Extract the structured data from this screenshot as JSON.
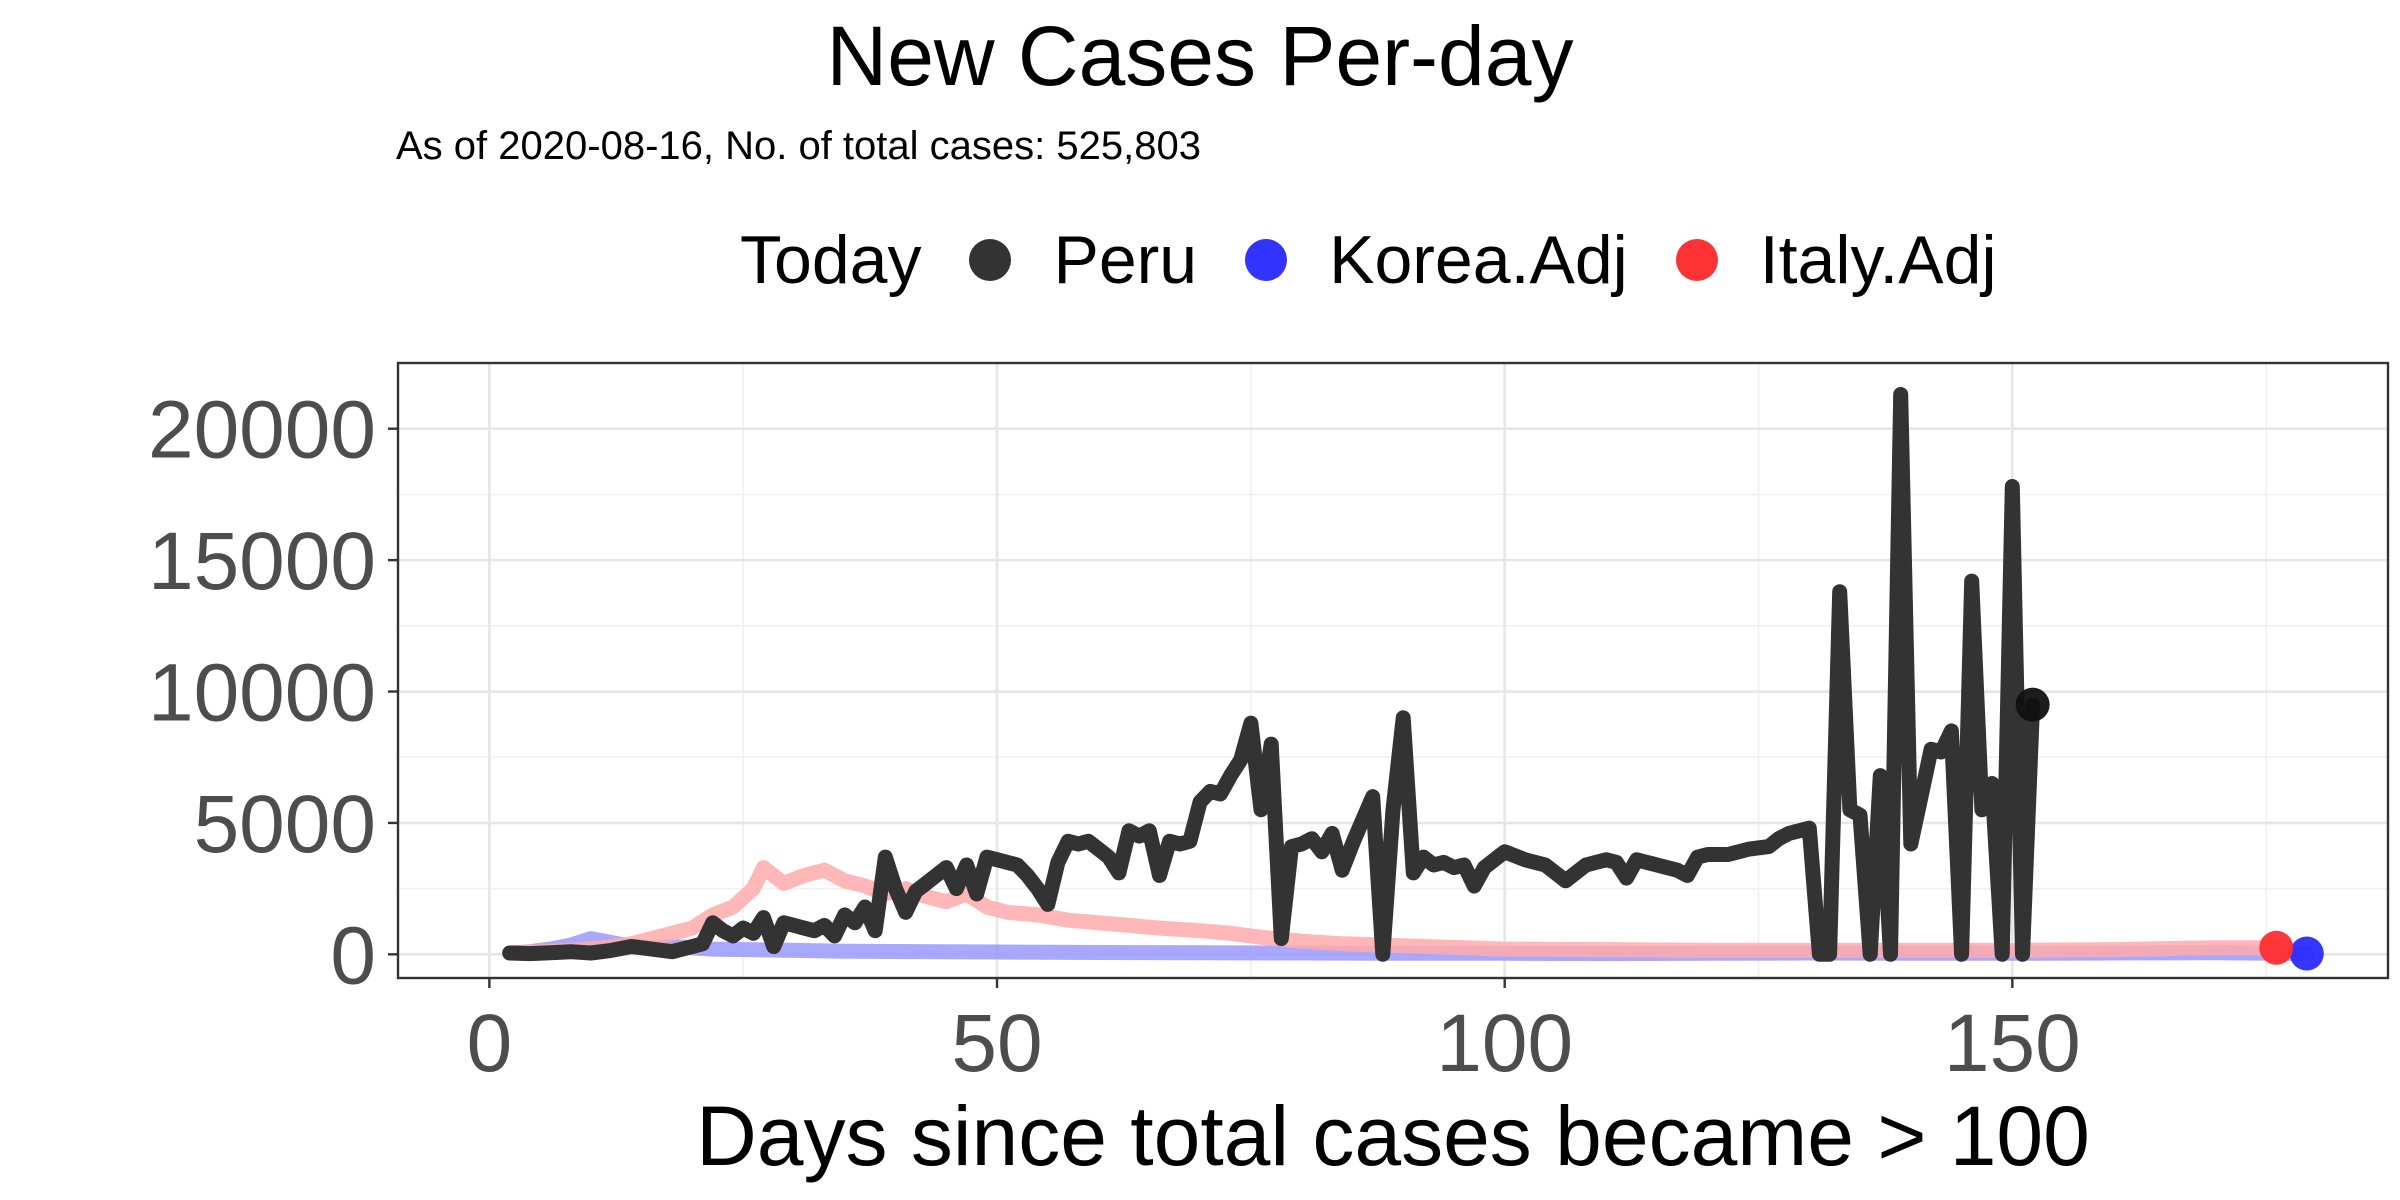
{
  "chart_data": {
    "type": "line",
    "title": "New Cases Per-day",
    "subtitle": "As of 2020-08-16, No. of total cases: 525,803",
    "xlabel": "Days since total cases became > 100",
    "ylabel": "",
    "xlim": [
      -9,
      187
    ],
    "ylim": [
      -900,
      22500
    ],
    "x_ticks": [
      0,
      50,
      100,
      150
    ],
    "y_ticks": [
      0,
      5000,
      10000,
      15000,
      20000
    ],
    "grid": true,
    "legend": {
      "title": "Today",
      "position": "top",
      "entries": [
        {
          "label": "Peru",
          "color": "#333333"
        },
        {
          "label": "Korea.Adj",
          "color": "#3333ff"
        },
        {
          "label": "Italy.Adj",
          "color": "#ff3333"
        }
      ]
    },
    "series": [
      {
        "name": "Korea.Adj",
        "color": "#9999ff",
        "today_color": "#2b2bff",
        "today": [
          179,
          30
        ],
        "points": [
          [
            2,
            50
          ],
          [
            4,
            100
          ],
          [
            6,
            200
          ],
          [
            8,
            350
          ],
          [
            10,
            600
          ],
          [
            12,
            450
          ],
          [
            14,
            300
          ],
          [
            16,
            250
          ],
          [
            18,
            300
          ],
          [
            20,
            250
          ],
          [
            22,
            200
          ],
          [
            25,
            180
          ],
          [
            30,
            150
          ],
          [
            35,
            120
          ],
          [
            40,
            110
          ],
          [
            45,
            100
          ],
          [
            50,
            90
          ],
          [
            60,
            70
          ],
          [
            70,
            60
          ],
          [
            80,
            50
          ],
          [
            90,
            40
          ],
          [
            100,
            40
          ],
          [
            110,
            30
          ],
          [
            120,
            40
          ],
          [
            130,
            50
          ],
          [
            140,
            40
          ],
          [
            150,
            40
          ],
          [
            160,
            50
          ],
          [
            170,
            60
          ],
          [
            179,
            30
          ]
        ]
      },
      {
        "name": "Italy.Adj",
        "color": "#ffaaaa",
        "today_color": "#ff2e2e",
        "today": [
          176,
          250
        ],
        "points": [
          [
            2,
            50
          ],
          [
            5,
            100
          ],
          [
            8,
            150
          ],
          [
            11,
            250
          ],
          [
            14,
            400
          ],
          [
            17,
            700
          ],
          [
            20,
            1000
          ],
          [
            22,
            1500
          ],
          [
            24,
            1800
          ],
          [
            26,
            2500
          ],
          [
            27,
            3300
          ],
          [
            29,
            2700
          ],
          [
            31,
            3000
          ],
          [
            33,
            3200
          ],
          [
            35,
            2800
          ],
          [
            37,
            2600
          ],
          [
            39,
            2300
          ],
          [
            41,
            2500
          ],
          [
            43,
            2200
          ],
          [
            45,
            2000
          ],
          [
            47,
            2300
          ],
          [
            49,
            1800
          ],
          [
            51,
            1600
          ],
          [
            54,
            1500
          ],
          [
            57,
            1300
          ],
          [
            60,
            1200
          ],
          [
            63,
            1100
          ],
          [
            66,
            1000
          ],
          [
            70,
            900
          ],
          [
            73,
            800
          ],
          [
            76,
            650
          ],
          [
            80,
            500
          ],
          [
            84,
            400
          ],
          [
            88,
            350
          ],
          [
            92,
            300
          ],
          [
            96,
            250
          ],
          [
            100,
            200
          ],
          [
            110,
            180
          ],
          [
            120,
            150
          ],
          [
            130,
            150
          ],
          [
            140,
            150
          ],
          [
            150,
            150
          ],
          [
            160,
            180
          ],
          [
            170,
            250
          ],
          [
            176,
            250
          ]
        ]
      },
      {
        "name": "Peru",
        "color": "#333333",
        "today_color": "#111111",
        "today": [
          152,
          9500
        ],
        "points": [
          [
            2,
            50
          ],
          [
            4,
            30
          ],
          [
            6,
            60
          ],
          [
            8,
            100
          ],
          [
            10,
            50
          ],
          [
            12,
            150
          ],
          [
            14,
            300
          ],
          [
            16,
            200
          ],
          [
            18,
            100
          ],
          [
            20,
            300
          ],
          [
            21,
            400
          ],
          [
            22,
            1200
          ],
          [
            23,
            900
          ],
          [
            24,
            700
          ],
          [
            25,
            1000
          ],
          [
            26,
            800
          ],
          [
            27,
            1400
          ],
          [
            28,
            300
          ],
          [
            29,
            1200
          ],
          [
            30,
            1100
          ],
          [
            31,
            1000
          ],
          [
            32,
            900
          ],
          [
            33,
            1100
          ],
          [
            34,
            700
          ],
          [
            35,
            1500
          ],
          [
            36,
            1200
          ],
          [
            37,
            1800
          ],
          [
            38,
            900
          ],
          [
            39,
            3700
          ],
          [
            40,
            2500
          ],
          [
            41,
            1600
          ],
          [
            42,
            2400
          ],
          [
            43,
            2700
          ],
          [
            44,
            3000
          ],
          [
            45,
            3300
          ],
          [
            46,
            2500
          ],
          [
            47,
            3400
          ],
          [
            48,
            2300
          ],
          [
            49,
            3700
          ],
          [
            50,
            3600
          ],
          [
            51,
            3500
          ],
          [
            52,
            3400
          ],
          [
            53,
            3000
          ],
          [
            54,
            2500
          ],
          [
            55,
            1900
          ],
          [
            56,
            3500
          ],
          [
            57,
            4300
          ],
          [
            58,
            4200
          ],
          [
            59,
            4300
          ],
          [
            60,
            4000
          ],
          [
            61,
            3700
          ],
          [
            62,
            3100
          ],
          [
            63,
            4700
          ],
          [
            64,
            4500
          ],
          [
            65,
            4700
          ],
          [
            66,
            3000
          ],
          [
            67,
            4300
          ],
          [
            68,
            4200
          ],
          [
            69,
            4300
          ],
          [
            70,
            5800
          ],
          [
            71,
            6200
          ],
          [
            72,
            6100
          ],
          [
            73,
            6800
          ],
          [
            74,
            7400
          ],
          [
            75,
            8800
          ],
          [
            76,
            5500
          ],
          [
            77,
            8000
          ],
          [
            78,
            600
          ],
          [
            79,
            4100
          ],
          [
            80,
            4200
          ],
          [
            81,
            4400
          ],
          [
            82,
            3900
          ],
          [
            83,
            4600
          ],
          [
            84,
            3200
          ],
          [
            85,
            4200
          ],
          [
            86,
            5100
          ],
          [
            87,
            6000
          ],
          [
            88,
            0
          ],
          [
            89,
            5500
          ],
          [
            90,
            9000
          ],
          [
            91,
            3100
          ],
          [
            92,
            3700
          ],
          [
            93,
            3400
          ],
          [
            94,
            3500
          ],
          [
            95,
            3300
          ],
          [
            96,
            3400
          ],
          [
            97,
            2600
          ],
          [
            98,
            3300
          ],
          [
            99,
            3600
          ],
          [
            100,
            3900
          ],
          [
            102,
            3600
          ],
          [
            104,
            3400
          ],
          [
            106,
            2800
          ],
          [
            108,
            3400
          ],
          [
            110,
            3600
          ],
          [
            111,
            3500
          ],
          [
            112,
            2900
          ],
          [
            113,
            3600
          ],
          [
            115,
            3400
          ],
          [
            117,
            3200
          ],
          [
            118,
            3000
          ],
          [
            119,
            3700
          ],
          [
            120,
            3800
          ],
          [
            122,
            3800
          ],
          [
            124,
            4000
          ],
          [
            126,
            4100
          ],
          [
            127,
            4400
          ],
          [
            128,
            4600
          ],
          [
            130,
            4800
          ],
          [
            131,
            0
          ],
          [
            132,
            0
          ],
          [
            133,
            13800
          ],
          [
            134,
            5500
          ],
          [
            135,
            5300
          ],
          [
            136,
            0
          ],
          [
            137,
            6800
          ],
          [
            138,
            0
          ],
          [
            139,
            21300
          ],
          [
            140,
            4200
          ],
          [
            141,
            6000
          ],
          [
            142,
            7800
          ],
          [
            143,
            7700
          ],
          [
            144,
            8500
          ],
          [
            145,
            0
          ],
          [
            146,
            14200
          ],
          [
            147,
            5500
          ],
          [
            148,
            6500
          ],
          [
            149,
            0
          ],
          [
            150,
            17800
          ],
          [
            151,
            0
          ],
          [
            152,
            9500
          ]
        ]
      }
    ]
  }
}
